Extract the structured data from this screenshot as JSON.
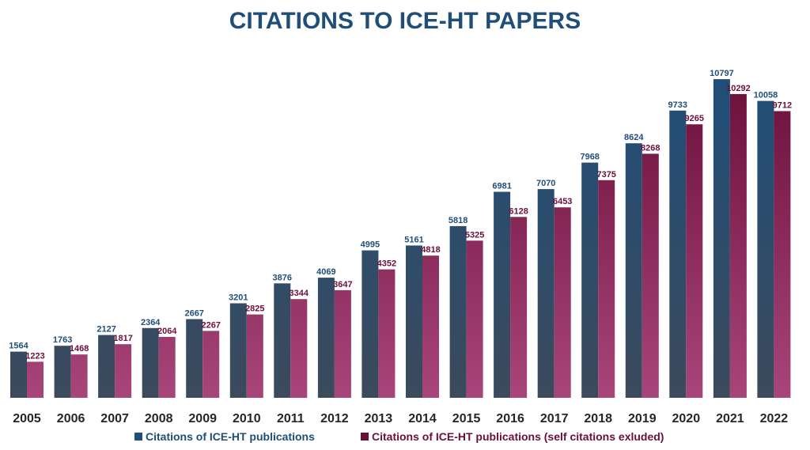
{
  "chart_data": {
    "type": "bar",
    "title": "CITATIONS TO ICE-HT PAPERS",
    "xlabel": "",
    "ylabel": "",
    "ylim": [
      0,
      11000
    ],
    "grid": false,
    "legend_position": "bottom",
    "categories": [
      "2005",
      "2006",
      "2007",
      "2008",
      "2009",
      "2010",
      "2011",
      "2012",
      "2013",
      "2014",
      "2015",
      "2016",
      "2017",
      "2018",
      "2019",
      "2020",
      "2021",
      "2022"
    ],
    "series": [
      {
        "name": "Citations of  ICE-HT publications",
        "color_top": "#1f4e79",
        "color_bottom": "#3c4a5c",
        "label_color": "#1f4e79",
        "values": [
          1564,
          1763,
          2127,
          2364,
          2667,
          3201,
          3876,
          4069,
          4995,
          5161,
          5818,
          6981,
          7070,
          7968,
          8624,
          9733,
          10797,
          10058
        ]
      },
      {
        "name": "Citations of  ICE-HT publications (self citations exluded)",
        "color_top": "#6b0f3a",
        "color_bottom": "#a8457a",
        "label_color": "#6b0f3a",
        "values": [
          1223,
          1468,
          1817,
          2064,
          2267,
          2825,
          3344,
          3647,
          4352,
          4818,
          5325,
          6128,
          6453,
          7375,
          8268,
          9265,
          10292,
          9712
        ]
      }
    ]
  }
}
